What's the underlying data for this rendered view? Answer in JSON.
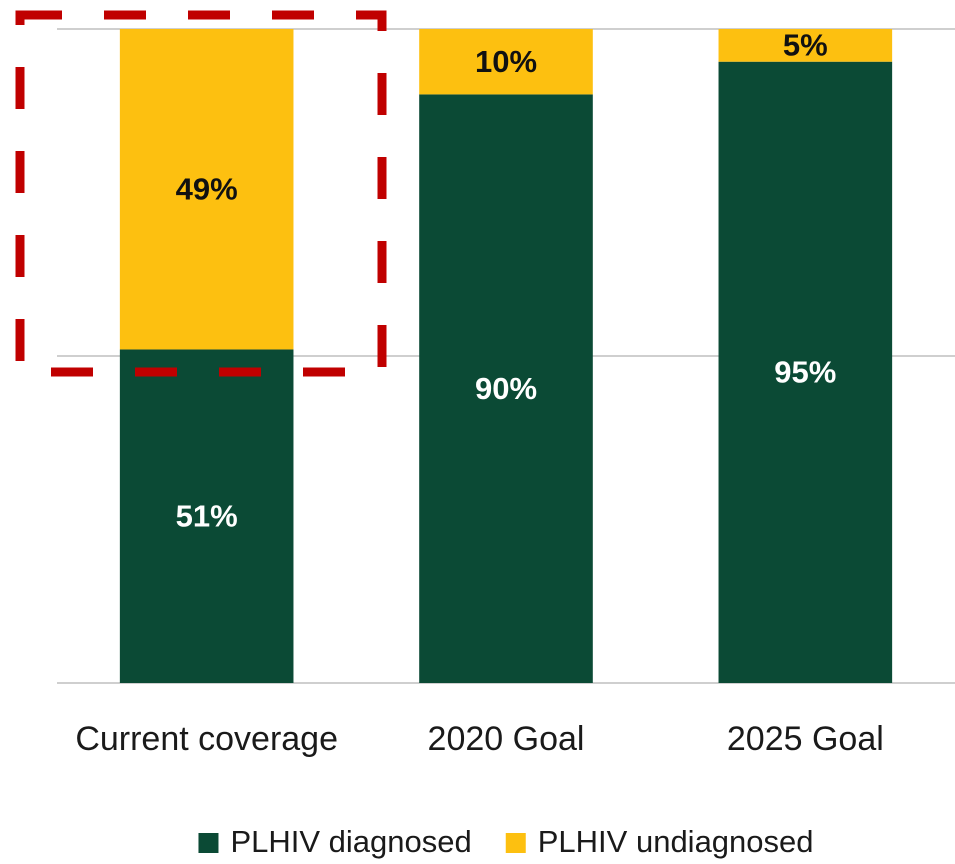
{
  "chart_data": {
    "type": "stacked_bar",
    "categories": [
      "Current coverage",
      "2020 Goal",
      "2025 Goal"
    ],
    "series": [
      {
        "name": "PLHIV diagnosed",
        "color": "#0b4a35",
        "label_color": "#ffffff",
        "values": [
          51,
          90,
          95
        ],
        "value_labels": [
          "51%",
          "90%",
          "95%"
        ]
      },
      {
        "name": "PLHIV undiagnosed",
        "color": "#fdc010",
        "label_color": "#111111",
        "values": [
          49,
          10,
          5
        ],
        "value_labels": [
          "49%",
          "10%",
          "5%"
        ]
      }
    ],
    "ylim": [
      0,
      100
    ],
    "yticks": [
      0,
      50,
      100
    ],
    "ytick_labels": false,
    "grid": true,
    "legend": "bottom"
  }
}
